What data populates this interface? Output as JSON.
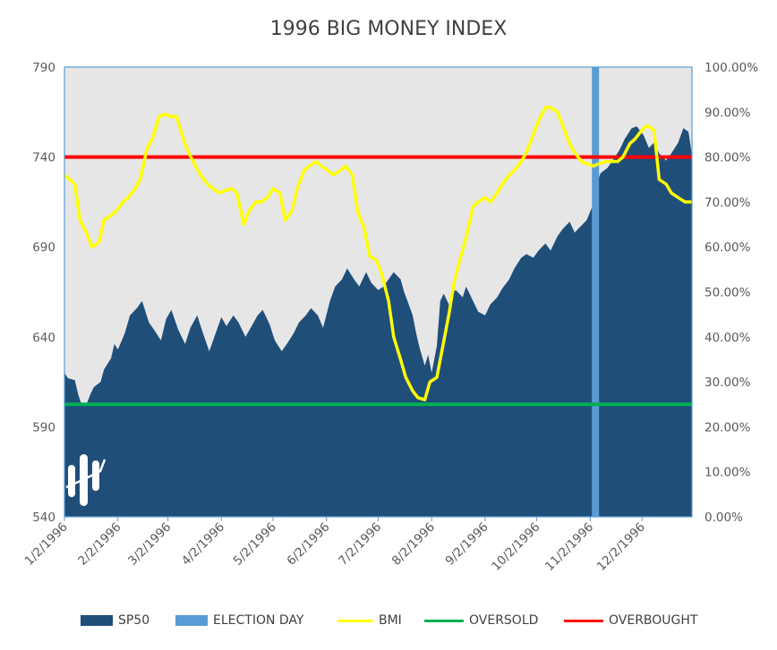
{
  "chart_data": {
    "type": "area",
    "title": "1996 BIG MONEY INDEX",
    "xlabel": "",
    "ylabel": "",
    "x_ticks": [
      "1/2/1996",
      "2/2/1996",
      "3/2/1996",
      "4/2/1996",
      "5/2/1996",
      "6/2/1996",
      "7/2/1996",
      "8/2/1996",
      "9/2/1996",
      "10/2/1996",
      "11/2/1996",
      "12/2/1996"
    ],
    "y_left_ticks": [
      "540",
      "590",
      "640",
      "690",
      "740",
      "790"
    ],
    "y_right_ticks": [
      "0.00%",
      "10.00%",
      "20.00%",
      "30.00%",
      "40.00%",
      "50.00%",
      "60.00%",
      "70.00%",
      "80.00%",
      "90.00%",
      "100.00%"
    ],
    "ylim_left": [
      540,
      790
    ],
    "ylim_right": [
      0,
      1
    ],
    "xlim": [
      "1996-01-02",
      "1996-12-31"
    ],
    "grid": false,
    "legend_position": "bottom",
    "series": [
      {
        "name": "SP50",
        "kind": "area",
        "axis": "left",
        "color": "#1F4E79",
        "points": [
          [
            "1996-01-02",
            620
          ],
          [
            "1996-01-04",
            617
          ],
          [
            "1996-01-08",
            616
          ],
          [
            "1996-01-10",
            608
          ],
          [
            "1996-01-12",
            602
          ],
          [
            "1996-01-15",
            603
          ],
          [
            "1996-01-17",
            608
          ],
          [
            "1996-01-19",
            612
          ],
          [
            "1996-01-23",
            615
          ],
          [
            "1996-01-25",
            622
          ],
          [
            "1996-01-29",
            628
          ],
          [
            "1996-01-31",
            636
          ],
          [
            "1996-02-02",
            633
          ],
          [
            "1996-02-06",
            642
          ],
          [
            "1996-02-09",
            652
          ],
          [
            "1996-02-13",
            656
          ],
          [
            "1996-02-16",
            660
          ],
          [
            "1996-02-20",
            648
          ],
          [
            "1996-02-23",
            644
          ],
          [
            "1996-02-27",
            638
          ],
          [
            "1996-03-01",
            650
          ],
          [
            "1996-03-04",
            655
          ],
          [
            "1996-03-08",
            644
          ],
          [
            "1996-03-12",
            636
          ],
          [
            "1996-03-15",
            645
          ],
          [
            "1996-03-19",
            652
          ],
          [
            "1996-03-22",
            643
          ],
          [
            "1996-03-26",
            632
          ],
          [
            "1996-03-29",
            640
          ],
          [
            "1996-04-02",
            651
          ],
          [
            "1996-04-05",
            646
          ],
          [
            "1996-04-09",
            652
          ],
          [
            "1996-04-12",
            648
          ],
          [
            "1996-04-16",
            640
          ],
          [
            "1996-04-19",
            645
          ],
          [
            "1996-04-23",
            652
          ],
          [
            "1996-04-26",
            655
          ],
          [
            "1996-04-30",
            647
          ],
          [
            "1996-05-03",
            638
          ],
          [
            "1996-05-07",
            632
          ],
          [
            "1996-05-10",
            636
          ],
          [
            "1996-05-14",
            642
          ],
          [
            "1996-05-17",
            648
          ],
          [
            "1996-05-21",
            652
          ],
          [
            "1996-05-24",
            656
          ],
          [
            "1996-05-28",
            652
          ],
          [
            "1996-05-31",
            645
          ],
          [
            "1996-06-04",
            660
          ],
          [
            "1996-06-07",
            668
          ],
          [
            "1996-06-11",
            672
          ],
          [
            "1996-06-14",
            678
          ],
          [
            "1996-06-18",
            672
          ],
          [
            "1996-06-21",
            668
          ],
          [
            "1996-06-25",
            676
          ],
          [
            "1996-06-28",
            670
          ],
          [
            "1996-07-02",
            666
          ],
          [
            "1996-07-05",
            668
          ],
          [
            "1996-07-08",
            672
          ],
          [
            "1996-07-11",
            676
          ],
          [
            "1996-07-15",
            672
          ],
          [
            "1996-07-17",
            665
          ],
          [
            "1996-07-19",
            660
          ],
          [
            "1996-07-22",
            652
          ],
          [
            "1996-07-24",
            642
          ],
          [
            "1996-07-26",
            634
          ],
          [
            "1996-07-29",
            624
          ],
          [
            "1996-07-31",
            630
          ],
          [
            "1996-08-02",
            620
          ],
          [
            "1996-08-05",
            635
          ],
          [
            "1996-08-07",
            660
          ],
          [
            "1996-08-09",
            664
          ],
          [
            "1996-08-12",
            658
          ],
          [
            "1996-08-14",
            665
          ],
          [
            "1996-08-16",
            666
          ],
          [
            "1996-08-20",
            662
          ],
          [
            "1996-08-22",
            668
          ],
          [
            "1996-08-26",
            660
          ],
          [
            "1996-08-29",
            654
          ],
          [
            "1996-09-02",
            652
          ],
          [
            "1996-09-05",
            658
          ],
          [
            "1996-09-09",
            662
          ],
          [
            "1996-09-12",
            667
          ],
          [
            "1996-09-16",
            672
          ],
          [
            "1996-09-19",
            678
          ],
          [
            "1996-09-23",
            684
          ],
          [
            "1996-09-26",
            686
          ],
          [
            "1996-09-30",
            684
          ],
          [
            "1996-10-03",
            688
          ],
          [
            "1996-10-07",
            692
          ],
          [
            "1996-10-10",
            688
          ],
          [
            "1996-10-14",
            696
          ],
          [
            "1996-10-17",
            700
          ],
          [
            "1996-10-21",
            704
          ],
          [
            "1996-10-24",
            698
          ],
          [
            "1996-10-28",
            702
          ],
          [
            "1996-10-31",
            705
          ],
          [
            "1996-11-03",
            712
          ],
          [
            "1996-11-06",
            726
          ],
          [
            "1996-11-08",
            731
          ],
          [
            "1996-11-12",
            734
          ],
          [
            "1996-11-15",
            738
          ],
          [
            "1996-11-19",
            744
          ],
          [
            "1996-11-22",
            750
          ],
          [
            "1996-11-26",
            756
          ],
          [
            "1996-11-29",
            757
          ],
          [
            "1996-12-03",
            752
          ],
          [
            "1996-12-06",
            745
          ],
          [
            "1996-12-09",
            748
          ],
          [
            "1996-12-12",
            742
          ],
          [
            "1996-12-16",
            738
          ],
          [
            "1996-12-19",
            742
          ],
          [
            "1996-12-23",
            748
          ],
          [
            "1996-12-26",
            756
          ],
          [
            "1996-12-29",
            754
          ],
          [
            "1996-12-31",
            741
          ]
        ]
      },
      {
        "name": "ELECTION DAY",
        "kind": "vertical-band",
        "axis": "x",
        "color": "#5B9BD5",
        "x": "1996-11-05"
      },
      {
        "name": "BMI",
        "kind": "line",
        "axis": "right",
        "color": "#FFFF00",
        "points": [
          [
            "1996-01-02",
            0.76
          ],
          [
            "1996-01-05",
            0.75
          ],
          [
            "1996-01-08",
            0.74
          ],
          [
            "1996-01-11",
            0.66
          ],
          [
            "1996-01-15",
            0.63
          ],
          [
            "1996-01-18",
            0.6
          ],
          [
            "1996-01-22",
            0.61
          ],
          [
            "1996-01-25",
            0.66
          ],
          [
            "1996-01-29",
            0.67
          ],
          [
            "1996-02-01",
            0.68
          ],
          [
            "1996-02-05",
            0.7
          ],
          [
            "1996-02-08",
            0.71
          ],
          [
            "1996-02-12",
            0.73
          ],
          [
            "1996-02-15",
            0.75
          ],
          [
            "1996-02-19",
            0.82
          ],
          [
            "1996-02-22",
            0.84
          ],
          [
            "1996-02-26",
            0.89
          ],
          [
            "1996-02-29",
            0.895
          ],
          [
            "1996-03-04",
            0.89
          ],
          [
            "1996-03-07",
            0.89
          ],
          [
            "1996-03-11",
            0.84
          ],
          [
            "1996-03-14",
            0.81
          ],
          [
            "1996-03-18",
            0.78
          ],
          [
            "1996-03-21",
            0.76
          ],
          [
            "1996-03-25",
            0.74
          ],
          [
            "1996-03-28",
            0.73
          ],
          [
            "1996-04-01",
            0.72
          ],
          [
            "1996-04-04",
            0.725
          ],
          [
            "1996-04-08",
            0.73
          ],
          [
            "1996-04-11",
            0.72
          ],
          [
            "1996-04-15",
            0.65
          ],
          [
            "1996-04-18",
            0.68
          ],
          [
            "1996-04-22",
            0.7
          ],
          [
            "1996-04-25",
            0.7
          ],
          [
            "1996-04-29",
            0.71
          ],
          [
            "1996-05-02",
            0.73
          ],
          [
            "1996-05-06",
            0.72
          ],
          [
            "1996-05-09",
            0.66
          ],
          [
            "1996-05-13",
            0.68
          ],
          [
            "1996-05-16",
            0.73
          ],
          [
            "1996-05-20",
            0.77
          ],
          [
            "1996-05-23",
            0.78
          ],
          [
            "1996-05-27",
            0.79
          ],
          [
            "1996-05-30",
            0.78
          ],
          [
            "1996-06-03",
            0.77
          ],
          [
            "1996-06-06",
            0.76
          ],
          [
            "1996-06-10",
            0.77
          ],
          [
            "1996-06-13",
            0.78
          ],
          [
            "1996-06-17",
            0.76
          ],
          [
            "1996-06-20",
            0.68
          ],
          [
            "1996-06-24",
            0.64
          ],
          [
            "1996-06-27",
            0.58
          ],
          [
            "1996-07-01",
            0.57
          ],
          [
            "1996-07-04",
            0.54
          ],
          [
            "1996-07-08",
            0.48
          ],
          [
            "1996-07-11",
            0.4
          ],
          [
            "1996-07-15",
            0.35
          ],
          [
            "1996-07-18",
            0.31
          ],
          [
            "1996-07-22",
            0.28
          ],
          [
            "1996-07-25",
            0.265
          ],
          [
            "1996-07-29",
            0.26
          ],
          [
            "1996-08-01",
            0.3
          ],
          [
            "1996-08-05",
            0.31
          ],
          [
            "1996-08-08",
            0.37
          ],
          [
            "1996-08-12",
            0.45
          ],
          [
            "1996-08-15",
            0.52
          ],
          [
            "1996-08-19",
            0.58
          ],
          [
            "1996-08-22",
            0.62
          ],
          [
            "1996-08-26",
            0.69
          ],
          [
            "1996-08-29",
            0.7
          ],
          [
            "1996-09-02",
            0.71
          ],
          [
            "1996-09-05",
            0.7
          ],
          [
            "1996-09-09",
            0.72
          ],
          [
            "1996-09-12",
            0.74
          ],
          [
            "1996-09-16",
            0.76
          ],
          [
            "1996-09-19",
            0.77
          ],
          [
            "1996-09-23",
            0.79
          ],
          [
            "1996-09-26",
            0.81
          ],
          [
            "1996-09-30",
            0.85
          ],
          [
            "1996-10-03",
            0.88
          ],
          [
            "1996-10-07",
            0.91
          ],
          [
            "1996-10-10",
            0.91
          ],
          [
            "1996-10-14",
            0.9
          ],
          [
            "1996-10-17",
            0.87
          ],
          [
            "1996-10-21",
            0.83
          ],
          [
            "1996-10-24",
            0.81
          ],
          [
            "1996-10-28",
            0.79
          ],
          [
            "1996-10-31",
            0.785
          ],
          [
            "1996-11-04",
            0.78
          ],
          [
            "1996-11-07",
            0.785
          ],
          [
            "1996-11-11",
            0.79
          ],
          [
            "1996-11-14",
            0.79
          ],
          [
            "1996-11-18",
            0.79
          ],
          [
            "1996-11-21",
            0.8
          ],
          [
            "1996-11-25",
            0.83
          ],
          [
            "1996-11-28",
            0.84
          ],
          [
            "1996-12-02",
            0.86
          ],
          [
            "1996-12-05",
            0.87
          ],
          [
            "1996-12-09",
            0.86
          ],
          [
            "1996-12-12",
            0.75
          ],
          [
            "1996-12-16",
            0.74
          ],
          [
            "1996-12-19",
            0.72
          ],
          [
            "1996-12-23",
            0.71
          ],
          [
            "1996-12-27",
            0.7
          ],
          [
            "1996-12-31",
            0.7
          ]
        ]
      },
      {
        "name": "OVERSOLD",
        "kind": "horizontal-line",
        "axis": "right",
        "color": "#00B050",
        "value": 0.25
      },
      {
        "name": "OVERBOUGHT",
        "kind": "horizontal-line",
        "axis": "right",
        "color": "#FF0000",
        "value": 0.8
      }
    ]
  }
}
